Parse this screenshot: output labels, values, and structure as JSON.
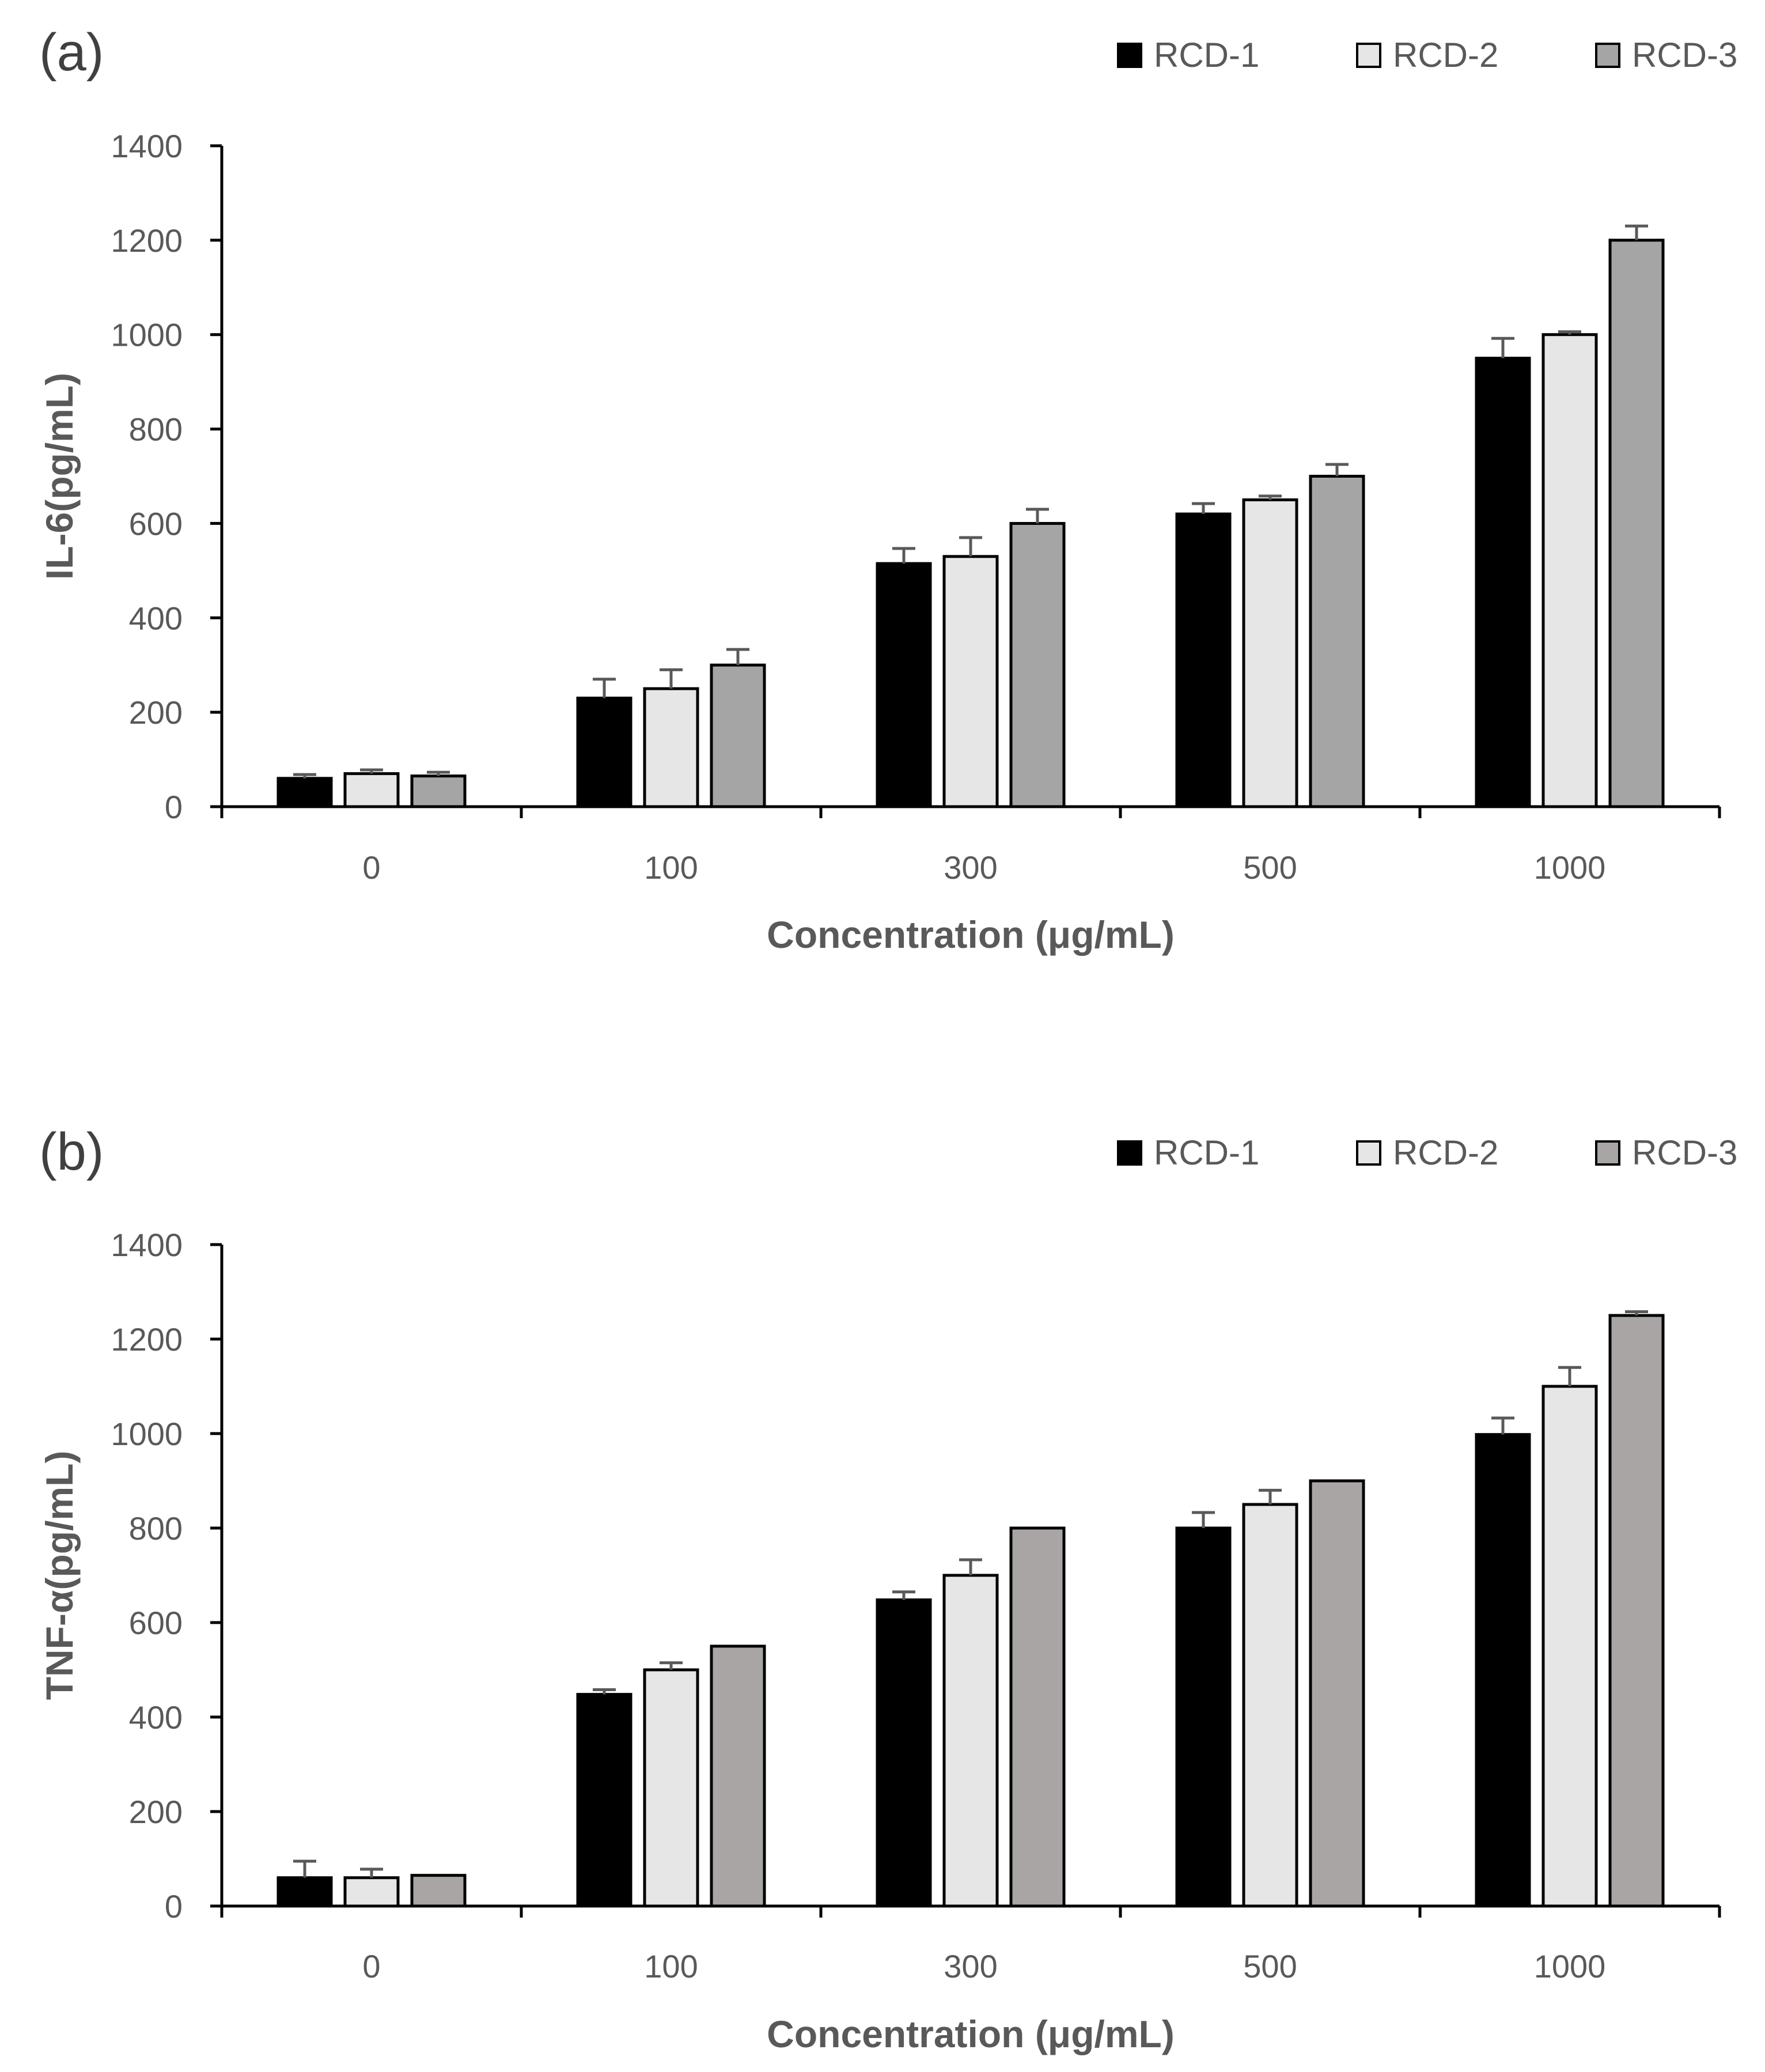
{
  "chart_data": [
    {
      "type": "bar",
      "panel_label": "(a)",
      "categories": [
        "0",
        "100",
        "300",
        "500",
        "1000"
      ],
      "xlabel": "Concentration (μg/mL)",
      "ylabel": "IL-6(pg/mL)",
      "ylim": [
        0,
        1400
      ],
      "yticks": [
        "0",
        "200",
        "400",
        "600",
        "800",
        "1000",
        "1200",
        "1400"
      ],
      "grid": false,
      "legend_position": "top-right",
      "series": [
        {
          "name": "RCD-1",
          "color": "#000000",
          "values": [
            60,
            230,
            515,
            620,
            950
          ],
          "errors": [
            8,
            40,
            32,
            22,
            42
          ]
        },
        {
          "name": "RCD-2",
          "color": "#e6e6e6",
          "values": [
            70,
            250,
            530,
            650,
            1000
          ],
          "errors": [
            8,
            40,
            40,
            8,
            6
          ]
        },
        {
          "name": "RCD-3",
          "color": "#a5a5a5",
          "values": [
            65,
            300,
            600,
            700,
            1200
          ],
          "errors": [
            8,
            33,
            30,
            25,
            30
          ]
        }
      ]
    },
    {
      "type": "bar",
      "panel_label": "(b)",
      "categories": [
        "0",
        "100",
        "300",
        "500",
        "1000"
      ],
      "xlabel": "Concentration (μg/mL)",
      "ylabel": "TNF-α(pg/mL)",
      "ylim": [
        0,
        1400
      ],
      "yticks": [
        "0",
        "200",
        "400",
        "600",
        "800",
        "1000",
        "1200",
        "1400"
      ],
      "grid": false,
      "legend_position": "top-right",
      "series": [
        {
          "name": "RCD-1",
          "color": "#000000",
          "values": [
            60,
            448,
            648,
            800,
            998
          ],
          "errors": [
            35,
            10,
            17,
            33,
            35
          ]
        },
        {
          "name": "RCD-2",
          "color": "#e6e6e6",
          "values": [
            60,
            500,
            700,
            850,
            1100
          ],
          "errors": [
            18,
            15,
            33,
            30,
            40
          ]
        },
        {
          "name": "RCD-3",
          "color": "#a9a5a4",
          "values": [
            65,
            550,
            800,
            900,
            1250
          ],
          "errors": [
            0,
            0,
            0,
            0,
            8
          ]
        }
      ]
    }
  ]
}
